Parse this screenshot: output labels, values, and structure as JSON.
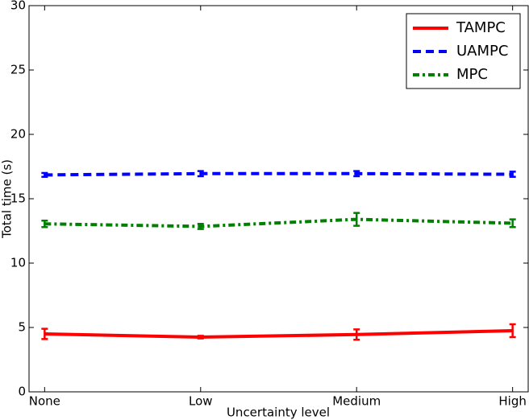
{
  "chart_data": {
    "type": "line",
    "xlabel": "Uncertainty level",
    "ylabel": "Total time (s)",
    "categories": [
      "None",
      "Low",
      "Medium",
      "High"
    ],
    "series": [
      {
        "name": "TAMPC",
        "color": "#ff0000",
        "linestyle": "solid",
        "values": [
          4.5,
          4.25,
          4.45,
          4.75
        ],
        "errors": [
          0.4,
          0.1,
          0.4,
          0.5
        ]
      },
      {
        "name": "UAMPC",
        "color": "#0000ff",
        "linestyle": "dashed",
        "values": [
          16.85,
          16.95,
          16.95,
          16.9
        ],
        "errors": [
          0.15,
          0.2,
          0.2,
          0.2
        ]
      },
      {
        "name": "MPC",
        "color": "#008000",
        "linestyle": "dashdot",
        "values": [
          13.05,
          12.85,
          13.4,
          13.1
        ],
        "errors": [
          0.25,
          0.2,
          0.5,
          0.3
        ]
      }
    ],
    "ylim": [
      0,
      30
    ],
    "yticks": [
      0,
      5,
      10,
      15,
      20,
      25,
      30
    ],
    "grid": false,
    "legend": "upper right"
  }
}
